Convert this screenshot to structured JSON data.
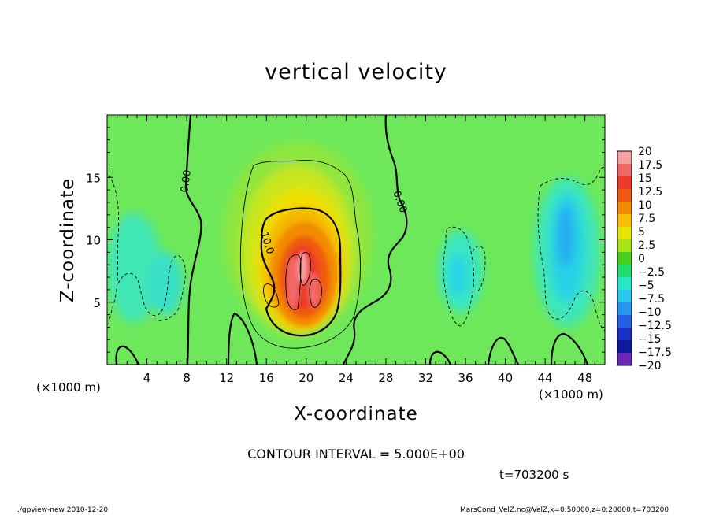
{
  "chart_data": {
    "type": "heatmap",
    "title": "vertical velocity",
    "xlabel": "X-coordinate",
    "ylabel": "Z-coordinate",
    "x_unit": "(×1000 m)",
    "z_unit": "(×1000 m)",
    "x_ticks": [
      4,
      8,
      12,
      16,
      20,
      24,
      28,
      32,
      36,
      40,
      44,
      48
    ],
    "y_ticks": [
      5,
      10,
      15
    ],
    "xlim": [
      0,
      50
    ],
    "ylim": [
      0,
      20
    ],
    "colorbar": {
      "levels": [
        "20",
        "17.5",
        "15",
        "12.5",
        "10",
        "7.5",
        "5",
        "2.5",
        "0",
        "−2.5",
        "−5",
        "−7.5",
        "−10",
        "−12.5",
        "−15",
        "−17.5",
        "−20"
      ],
      "colors": [
        "#f7a0a0",
        "#f26868",
        "#ee3a28",
        "#f05a10",
        "#f28a00",
        "#f6c000",
        "#e6e600",
        "#a6e614",
        "#46d21e",
        "#20dc6e",
        "#28e6c8",
        "#28c8f0",
        "#2896f0",
        "#2460e6",
        "#1a30c8",
        "#1018a0",
        "#6a28b8"
      ]
    },
    "contour_labels": [
      "0.00",
      "0.00",
      "10.0"
    ],
    "contour_interval_text": "CONTOUR INTERVAL = 5.000E+00",
    "time_text": "t=703200 s",
    "features": [
      {
        "name": "updraft-core",
        "x": 19.5,
        "z": 7,
        "value": 18
      },
      {
        "name": "downdraft-right",
        "x": 46,
        "z": 9,
        "value": -7
      },
      {
        "name": "downdraft-left",
        "x": 2,
        "z": 8,
        "value": -5
      },
      {
        "name": "downdraft-mid",
        "x": 35,
        "z": 7,
        "value": -5
      }
    ]
  },
  "footer": {
    "left": "./gpview-new  2010-12-20",
    "right": "MarsCond_VelZ.nc@VelZ,x=0:50000,z=0:20000,t=703200"
  }
}
